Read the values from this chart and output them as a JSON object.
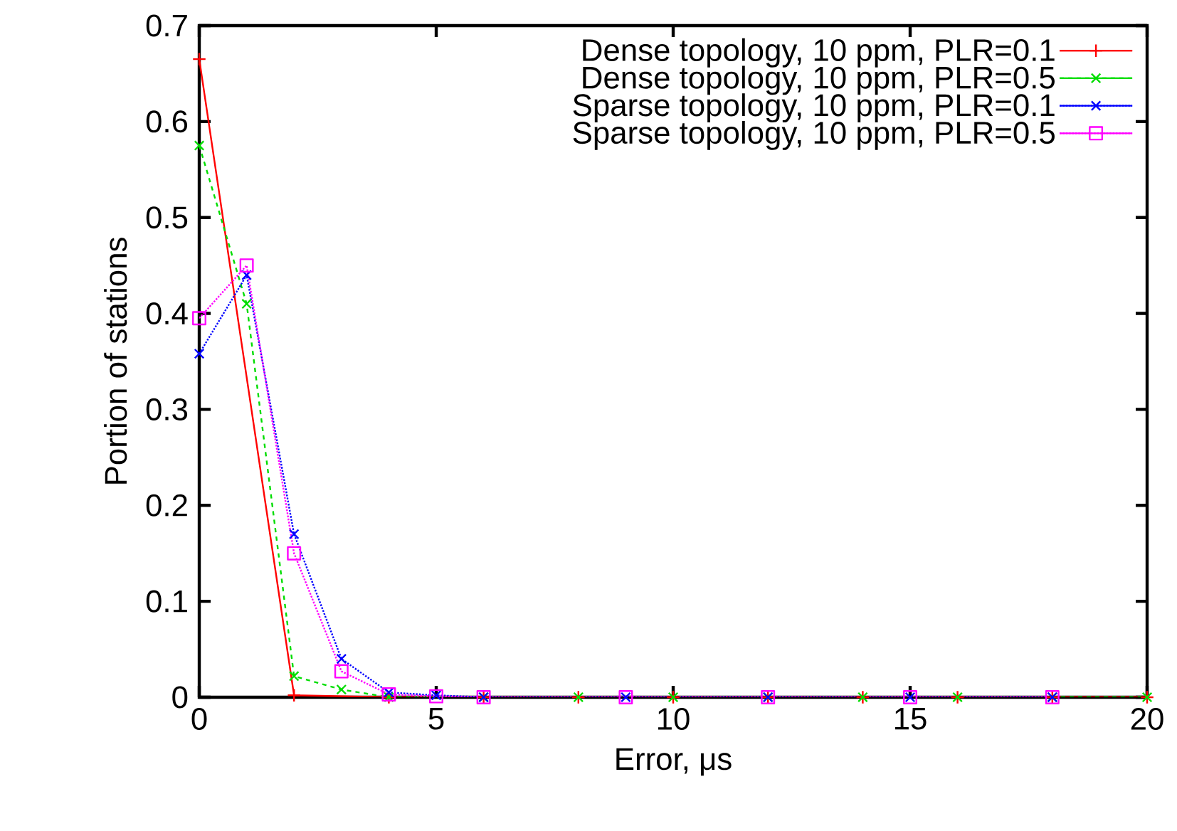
{
  "chart_data": {
    "type": "line",
    "xlabel": "Error, μs",
    "ylabel": "Portion of stations",
    "xlim": [
      0,
      20
    ],
    "ylim": [
      0,
      0.7
    ],
    "xticks": [
      0,
      5,
      10,
      15,
      20
    ],
    "yticks": [
      0,
      0.1,
      0.2,
      0.3,
      0.4,
      0.5,
      0.6,
      0.7
    ],
    "grid": false,
    "legend": "top right",
    "series": [
      {
        "name": "Dense topology, 10 ppm, PLR=0.1",
        "color": "#ff0000",
        "marker": "plus",
        "line_style": "solid",
        "x": [
          0,
          2,
          4,
          6,
          8,
          10,
          12,
          14,
          16,
          18,
          20
        ],
        "values": [
          0.665,
          0.002,
          0,
          0,
          0,
          0,
          0,
          0,
          0,
          0,
          0
        ]
      },
      {
        "name": "Dense topology, 10 ppm, PLR=0.5",
        "color": "#00dd00",
        "marker": "cross",
        "line_style": "dashed",
        "x": [
          0,
          1,
          2,
          3,
          4,
          6,
          8,
          10,
          12,
          14,
          16,
          18,
          20
        ],
        "values": [
          0.575,
          0.41,
          0.022,
          0.008,
          0,
          0,
          0,
          0,
          0,
          0,
          0,
          0,
          0
        ]
      },
      {
        "name": "Sparse topology, 10 ppm, PLR=0.1",
        "color": "#0000ff",
        "marker": "cross",
        "line_style": "dotted",
        "x": [
          0,
          1,
          2,
          3,
          4,
          5,
          6,
          9,
          12,
          15,
          18
        ],
        "values": [
          0.358,
          0.44,
          0.17,
          0.04,
          0.005,
          0.002,
          0,
          0,
          0,
          0,
          0
        ]
      },
      {
        "name": "Sparse topology, 10 ppm, PLR=0.5",
        "color": "#ff00ff",
        "marker": "square",
        "line_style": "dotted",
        "x": [
          0,
          1,
          2,
          3,
          4,
          5,
          6,
          9,
          12,
          15,
          18
        ],
        "values": [
          0.395,
          0.45,
          0.15,
          0.027,
          0.003,
          0.001,
          0,
          0,
          0,
          0,
          0
        ]
      }
    ]
  }
}
